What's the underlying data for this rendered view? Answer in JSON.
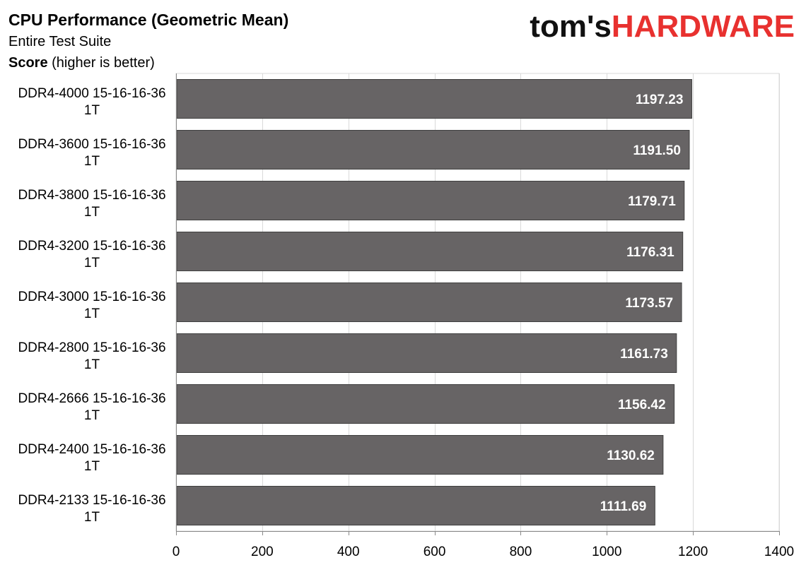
{
  "chart_data": {
    "type": "bar",
    "orientation": "horizontal",
    "title": "CPU Performance (Geometric Mean)",
    "subtitle": "Entire Test Suite",
    "ylabel_bold": "Score",
    "ylabel_rest": " (higher is better)",
    "categories": [
      [
        "DDR4-4000 15-16-16-36",
        "1T"
      ],
      [
        "DDR4-3600 15-16-16-36",
        "1T"
      ],
      [
        "DDR4-3800 15-16-16-36",
        "1T"
      ],
      [
        "DDR4-3200 15-16-16-36",
        "1T"
      ],
      [
        "DDR4-3000 15-16-16-36",
        "1T"
      ],
      [
        "DDR4-2800 15-16-16-36",
        "1T"
      ],
      [
        "DDR4-2666 15-16-16-36",
        "1T"
      ],
      [
        "DDR4-2400 15-16-16-36",
        "1T"
      ],
      [
        "DDR4-2133 15-16-16-36",
        "1T"
      ]
    ],
    "values": [
      1197.23,
      1191.5,
      1179.71,
      1176.31,
      1173.57,
      1161.73,
      1156.42,
      1130.62,
      1111.69
    ],
    "value_labels": [
      "1197.23",
      "1191.50",
      "1179.71",
      "1176.31",
      "1173.57",
      "1161.73",
      "1156.42",
      "1130.62",
      "1111.69"
    ],
    "xlim": [
      0,
      1400
    ],
    "xticks": [
      0,
      200,
      400,
      600,
      800,
      1000,
      1200,
      1400
    ],
    "grid": true,
    "bar_color": "#676465",
    "legend": "none"
  },
  "logo": {
    "part1": "tom's",
    "part2": "HARDWARE",
    "color1": "#111111",
    "color2": "#e8312f"
  }
}
